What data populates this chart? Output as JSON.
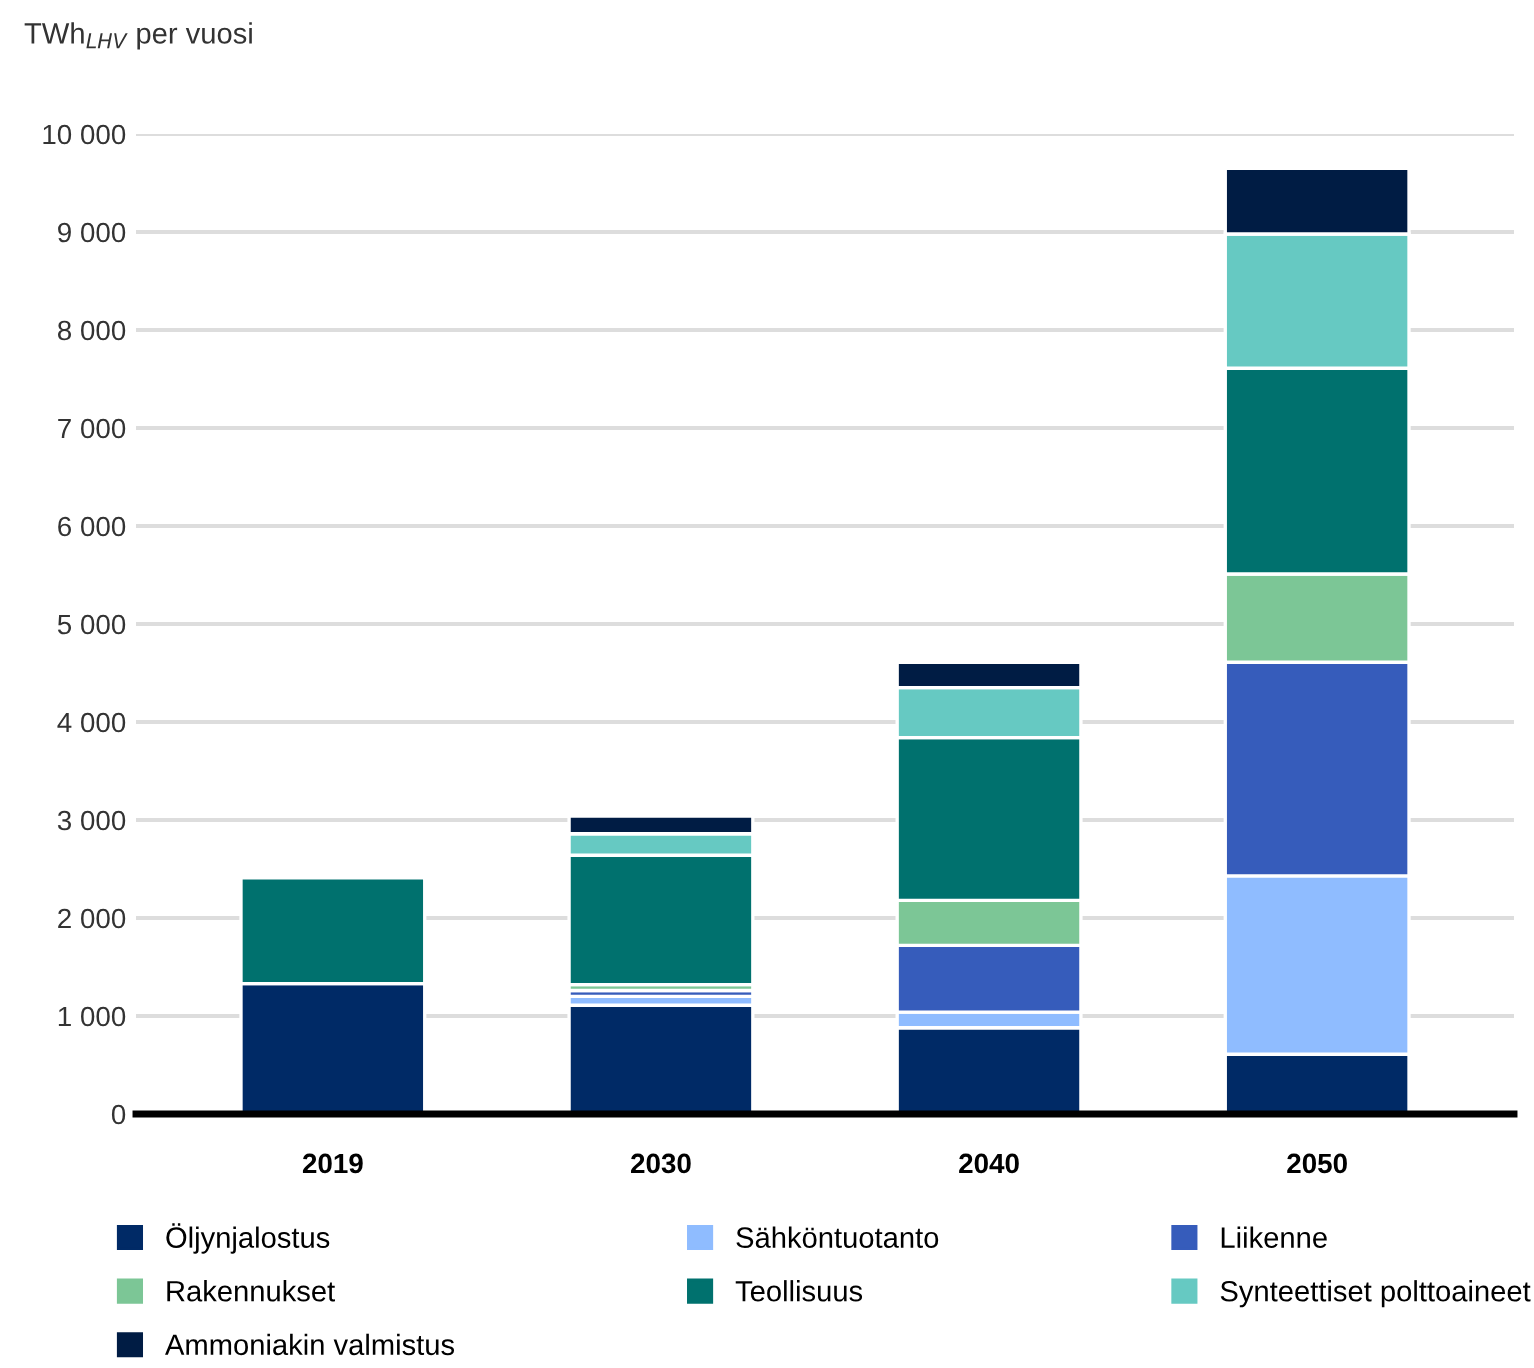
{
  "chart_data": {
    "type": "bar",
    "stacked": true,
    "ylabel": "TWh$_{LHV}$ per vuosi",
    "categories": [
      "2019",
      "2030",
      "2040",
      "2050"
    ],
    "series": [
      {
        "name": "Öljynjalostus",
        "color": "#002a66",
        "values": [
          1330,
          1110,
          880,
          610
        ]
      },
      {
        "name": "Sähköntuotanto",
        "color": "#8fbcff",
        "values": [
          null,
          90,
          160,
          1820
        ]
      },
      {
        "name": "Liikenne",
        "color": "#365cbb",
        "values": [
          null,
          60,
          680,
          2180
        ]
      },
      {
        "name": "Rakennukset",
        "color": "#7cc696",
        "values": [
          null,
          60,
          460,
          900
        ]
      },
      {
        "name": "Teollisuus",
        "color": "#00716e",
        "values": [
          1080,
          1320,
          1660,
          2100
        ]
      },
      {
        "name": "Synteettiset polttoaineet",
        "color": "#66c9c2",
        "values": [
          null,
          220,
          510,
          1370
        ]
      },
      {
        "name": "Ammoniakin valmistus",
        "color": "#001c44",
        "values": [
          null,
          180,
          260,
          670
        ]
      }
    ],
    "ylim": [
      0,
      10000
    ],
    "yticks": [
      0,
      {
        "value": 1000,
        "label": "1 000"
      },
      {
        "value": 2000,
        "label": "2 000"
      },
      {
        "value": 3000,
        "label": "3 000"
      },
      {
        "value": 4000,
        "label": "4 000"
      },
      {
        "value": 5000,
        "label": "5 000"
      },
      {
        "value": 6000,
        "label": "6 000"
      },
      {
        "value": 7000,
        "label": "7 000"
      },
      {
        "value": 8000,
        "label": "8 000"
      },
      {
        "value": 9000,
        "label": "9 000"
      },
      {
        "value": 10000,
        "label": "10 000"
      }
    ],
    "grid": "y",
    "legend": "bottom"
  }
}
